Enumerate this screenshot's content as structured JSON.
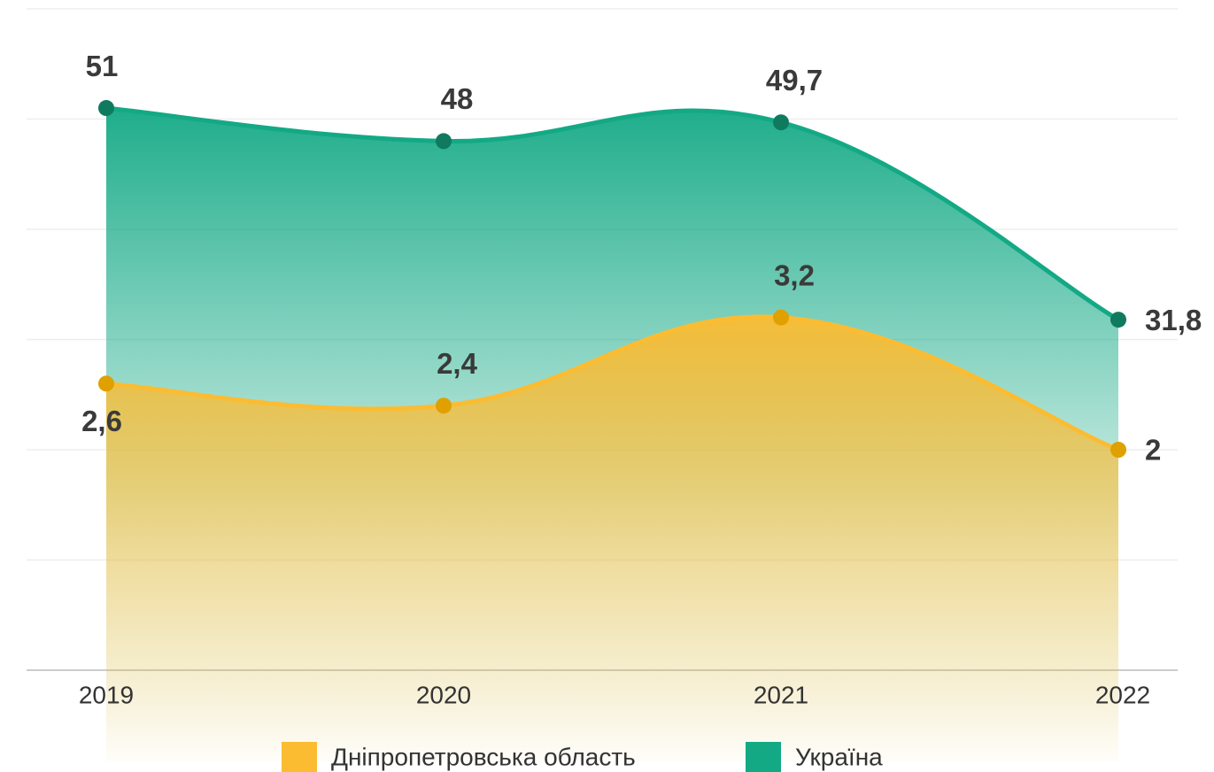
{
  "chart_data": {
    "type": "area",
    "categories": [
      "2019",
      "2020",
      "2021",
      "2022"
    ],
    "series": [
      {
        "name": "Дніпропетровська область",
        "color": "#fbbc32",
        "values": [
          2.6,
          2.4,
          3.2,
          2
        ],
        "value_labels": [
          "2,6",
          "2,4",
          "3,2",
          "2"
        ]
      },
      {
        "name": "Україна",
        "color": "#13a985",
        "values": [
          51,
          48,
          49.7,
          31.8
        ],
        "value_labels": [
          "51",
          "48",
          "49,7",
          "31,8"
        ],
        "axis": "y2"
      }
    ],
    "ylim": [
      0,
      6
    ],
    "y2lim": [
      0,
      60
    ],
    "grid": true,
    "legend": "bottom"
  }
}
